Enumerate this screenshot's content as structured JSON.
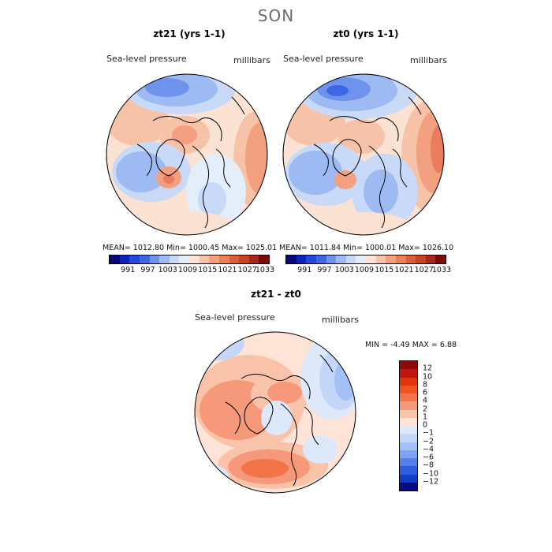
{
  "figure_title": "SON",
  "panels": {
    "left": {
      "title": "zt21 (yrs 1-1)",
      "variable_label": "Sea-level pressure",
      "units_label": "millibars",
      "stats": "MEAN= 1012.80   Min= 1000.45   Max= 1025.01"
    },
    "right": {
      "title": "zt0 (yrs 1-1)",
      "variable_label": "Sea-level pressure",
      "units_label": "millibars",
      "stats": "MEAN= 1011.84   Min= 1000.01   Max= 1026.10"
    },
    "diff": {
      "title": "zt21 - zt0",
      "variable_label": "Sea-level pressure",
      "units_label": "millibars",
      "stats": "MIN =   -4.49  MAX =    6.88"
    }
  },
  "colorbar_top": {
    "ticks": [
      "991",
      "997",
      "1003",
      "1009",
      "1015",
      "1021",
      "1027",
      "1033"
    ],
    "colors": [
      "#08087a",
      "#0e23b8",
      "#2547dc",
      "#3f66e6",
      "#6e93ec",
      "#9ebaf3",
      "#c8daf8",
      "#e4eefb",
      "#fbe2d3",
      "#f7c3a8",
      "#f2a07f",
      "#ec7d5c",
      "#e25a3e",
      "#cd3e28",
      "#a8251b",
      "#7a0b0b"
    ]
  },
  "colorbar_diff": {
    "ticks": [
      "12",
      "10",
      "8",
      "6",
      "4",
      "2",
      "1",
      "0",
      "−1",
      "−2",
      "−4",
      "−6",
      "−8",
      "−10",
      "−12"
    ],
    "colors": [
      "#8c0a0a",
      "#c0160f",
      "#e2330f",
      "#f05422",
      "#f37448",
      "#f5997a",
      "#f9c3a9",
      "#fde4d6",
      "#dde8fb",
      "#c4d7f9",
      "#a3c1f5",
      "#7ea3f0",
      "#567fe9",
      "#2f5ddc",
      "#123dc8",
      "#0a0a88"
    ]
  }
}
